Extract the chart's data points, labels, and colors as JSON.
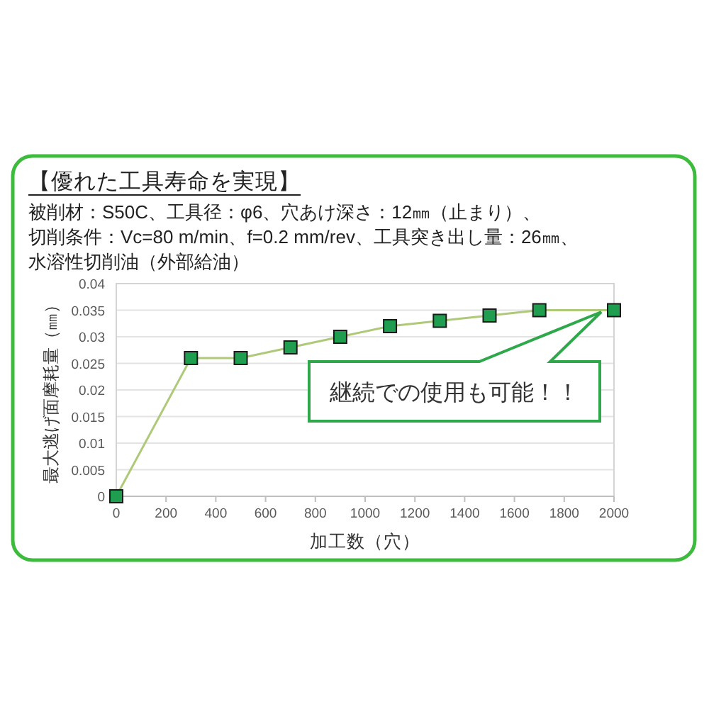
{
  "chart_data": {
    "type": "line",
    "title": "【優れた工具寿命を実現】",
    "subtitle": "被削材：S50C、工具径：φ6、穴あけ深さ：12㎜（止まり）、切削条件：Vc=80 m/min、f=0.2 mm/rev、工具突き出し量：26㎜、水溶性切削油（外部給油）",
    "xlabel": "加工数（穴）",
    "ylabel": "最大逃げ面摩耗量（㎜）",
    "x": [
      0,
      300,
      500,
      700,
      900,
      1100,
      1300,
      1500,
      1700,
      2000
    ],
    "series": [
      {
        "color": "#1f9e4f",
        "values": [
          0,
          0.026,
          0.026,
          0.028,
          0.03,
          0.032,
          0.033,
          0.034,
          0.035,
          0.035
        ]
      }
    ],
    "marker": "square",
    "grid": "y",
    "xlim": [
      0,
      2000
    ],
    "xticks": [
      0,
      200,
      400,
      600,
      800,
      1000,
      1200,
      1400,
      1600,
      1800,
      2000
    ],
    "ylim": [
      0,
      0.04
    ],
    "yticks": [
      0,
      0.005,
      0.01,
      0.015,
      0.02,
      0.025,
      0.03,
      0.035,
      0.04
    ],
    "annotations": [
      "継続での使用も可能！！"
    ]
  }
}
